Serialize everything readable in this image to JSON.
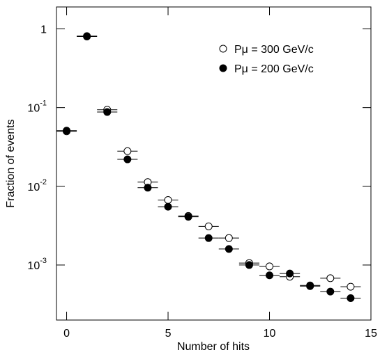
{
  "chart_data": {
    "type": "scatter",
    "x_label": "Number of hits",
    "y_label": "Fraction of events",
    "xlim": [
      -0.5,
      15
    ],
    "ylim": [
      0.0002,
      1.9
    ],
    "log_y": true,
    "grid": false,
    "xticks": [
      0,
      5,
      10,
      15
    ],
    "yticks": [
      {
        "value": 1,
        "label": "1"
      },
      {
        "value": 0.1,
        "label": "10",
        "sup": "-1"
      },
      {
        "value": 0.01,
        "label": "10",
        "sup": "-2"
      },
      {
        "value": 0.001,
        "label": "10",
        "sup": "-3"
      }
    ],
    "legend": "upper right",
    "x": [
      0,
      1,
      2,
      3,
      4,
      5,
      6,
      7,
      8,
      9,
      10,
      11,
      12,
      13,
      14
    ],
    "series": [
      {
        "name": "Pμ = 300 GeV/c",
        "color": "#ffffff",
        "values": [
          0.05,
          0.8,
          0.094,
          0.028,
          0.0113,
          0.0067,
          0.0042,
          0.0031,
          0.0022,
          0.00106,
          0.00096,
          0.00071,
          0.00055,
          0.00068,
          0.00053
        ]
      },
      {
        "name": "Pμ = 200 GeV/c",
        "color": "#000000",
        "values": [
          0.051,
          0.81,
          0.088,
          0.022,
          0.0096,
          0.0055,
          0.0041,
          0.0022,
          0.0016,
          0.001,
          0.00074,
          0.00078,
          0.00054,
          0.00046,
          0.00038
        ]
      }
    ]
  }
}
